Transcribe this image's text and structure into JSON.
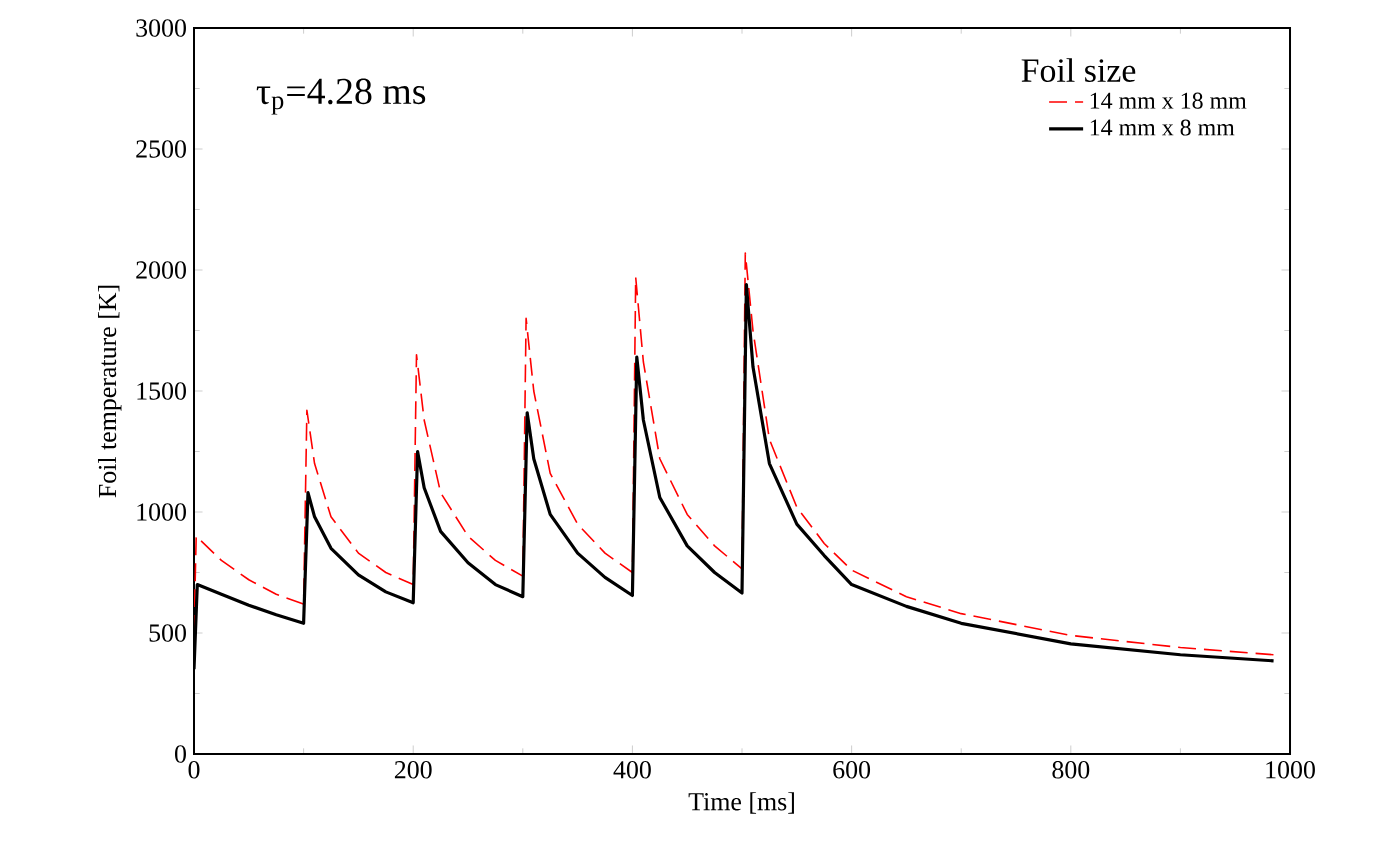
{
  "chart_data": {
    "type": "line",
    "xlabel": "Time [ms]",
    "ylabel": "Foil temperature [K]",
    "legend_title": "Foil size",
    "legend": "top right",
    "annotations": [
      "τ$_{p}$=4.28 ms"
    ],
    "xlim": [
      0,
      1000
    ],
    "xticks": [
      0,
      200,
      400,
      600,
      800,
      1000
    ],
    "ylim": [
      0,
      3000
    ],
    "yticks": [
      0,
      500,
      1000,
      1500,
      2000,
      2500,
      3000
    ],
    "series": [
      {
        "name": "14 mm x 18 mm",
        "color": "#ff0000",
        "line_style": "dashed",
        "x": [
          0,
          2,
          25,
          50,
          75,
          100,
          103,
          110,
          125,
          150,
          175,
          200,
          203,
          210,
          225,
          250,
          275,
          300,
          303,
          310,
          325,
          350,
          375,
          400,
          403,
          410,
          425,
          450,
          475,
          500,
          503,
          510,
          525,
          550,
          575,
          600,
          650,
          700,
          800,
          900,
          985
        ],
        "values": [
          500,
          900,
          800,
          720,
          660,
          620,
          1420,
          1200,
          980,
          830,
          750,
          700,
          1650,
          1380,
          1080,
          900,
          800,
          735,
          1800,
          1500,
          1160,
          950,
          830,
          750,
          1970,
          1620,
          1220,
          990,
          860,
          765,
          2070,
          1750,
          1300,
          1020,
          870,
          760,
          650,
          580,
          490,
          440,
          410
        ]
      },
      {
        "name": "14 mm x 8 mm",
        "color": "#000000",
        "line_style": "solid",
        "x": [
          0,
          3,
          25,
          50,
          75,
          100,
          104,
          110,
          125,
          150,
          175,
          200,
          204,
          210,
          225,
          250,
          275,
          300,
          304,
          310,
          325,
          350,
          375,
          400,
          404,
          410,
          425,
          450,
          475,
          500,
          504,
          510,
          525,
          550,
          575,
          600,
          650,
          700,
          800,
          900,
          985
        ],
        "values": [
          350,
          700,
          660,
          615,
          575,
          540,
          1080,
          980,
          850,
          740,
          670,
          625,
          1250,
          1100,
          920,
          790,
          700,
          650,
          1410,
          1220,
          990,
          830,
          730,
          655,
          1640,
          1380,
          1060,
          860,
          750,
          665,
          1940,
          1600,
          1200,
          950,
          820,
          700,
          610,
          540,
          455,
          410,
          385
        ]
      }
    ]
  }
}
